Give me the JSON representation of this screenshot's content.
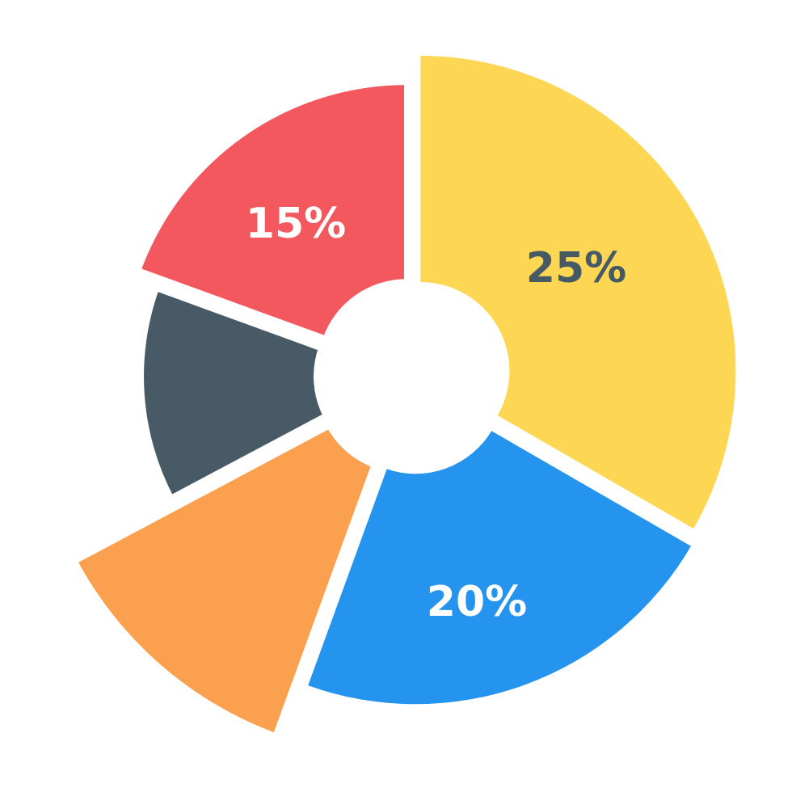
{
  "chart_data": {
    "type": "pie",
    "style": "rose-donut",
    "title": "",
    "legend": "none",
    "slices": [
      {
        "label": "25%",
        "value": 25,
        "color": "#FDD654",
        "label_color": "#455A64"
      },
      {
        "label": "20%",
        "value": 20,
        "color": "#2594EE",
        "label_color": "#FFFFFF"
      },
      {
        "label": "",
        "value": null,
        "color": "#FBA04F",
        "label_color": "#FFFFFF"
      },
      {
        "label": "",
        "value": null,
        "color": "#475A65",
        "label_color": "#FFFFFF"
      },
      {
        "label": "15%",
        "value": 15,
        "color": "#F2585D",
        "label_color": "#FFFFFF"
      }
    ]
  }
}
